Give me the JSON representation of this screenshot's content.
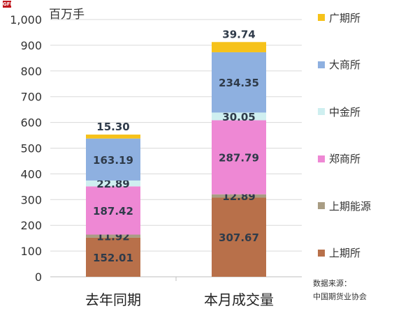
{
  "logo": {
    "text": "GFIT"
  },
  "unit": "百万手",
  "source": {
    "line1": "数据来源：",
    "line2": "中国期货业协会"
  },
  "chart_data": {
    "type": "bar",
    "stacked": true,
    "categories": [
      "去年同期",
      "本月成交量"
    ],
    "ylim": [
      0,
      1000
    ],
    "yticks": [
      0,
      100,
      200,
      300,
      400,
      500,
      600,
      700,
      800,
      900,
      1000
    ],
    "ytick_labels": [
      "0",
      "100",
      "200",
      "300",
      "400",
      "500",
      "600",
      "700",
      "800",
      "900",
      "1,000"
    ],
    "grid": true,
    "legend_position": "right",
    "series": [
      {
        "name": "上期所",
        "color": "#b8704a",
        "values": [
          152.01,
          307.67
        ],
        "labels": [
          "152.01",
          "307.67"
        ]
      },
      {
        "name": "上期能源",
        "color": "#a99d84",
        "values": [
          11.92,
          12.89
        ],
        "labels": [
          "11.92",
          "12.89"
        ]
      },
      {
        "name": "郑商所",
        "color": "#ee88d4",
        "values": [
          187.42,
          287.79
        ],
        "labels": [
          "187.42",
          "287.79"
        ]
      },
      {
        "name": "中金所",
        "color": "#cfeff0",
        "values": [
          22.89,
          30.05
        ],
        "labels": [
          "22.89",
          "30.05"
        ]
      },
      {
        "name": "大商所",
        "color": "#8eb0e0",
        "values": [
          163.19,
          234.35
        ],
        "labels": [
          "163.19",
          "234.35"
        ]
      },
      {
        "name": "广期所",
        "color": "#f6c21a",
        "values": [
          15.3,
          39.74
        ],
        "labels": [
          "15.30",
          "39.74"
        ]
      }
    ],
    "legend_order": [
      "广期所",
      "大商所",
      "中金所",
      "郑商所",
      "上期能源",
      "上期所"
    ]
  }
}
